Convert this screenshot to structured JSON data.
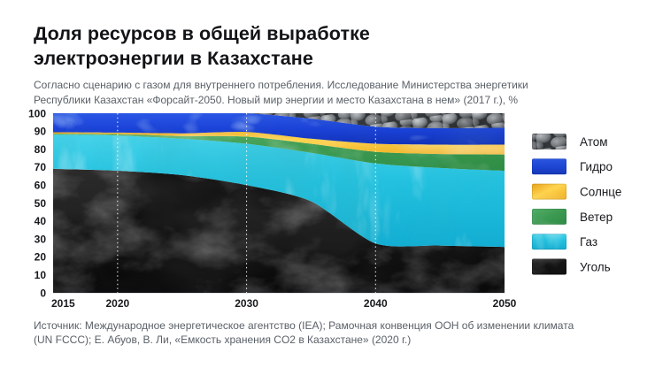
{
  "header": {
    "title_line1": "Доля ресурсов в общей выработке",
    "title_line2": "электроэнергии в Казахстане",
    "subtitle_line1": "Согласно сценарию с газом для внутреннего потребления. Исследование Министерства энергетики",
    "subtitle_line2": "Республики Казахстан «Форсайт-2050. Новый мир энергии и место Казахстана в нем» (2017 г.), %"
  },
  "footer": {
    "source_line1": "Источник: Международное энергетическое агентство (IEA); Рамочная конвенция ООН об изменении климата",
    "source_line2": "(UN FCCC); Е. Абуов, В. Ли, «Емкость хранения CO2 в Казахстане» (2020 г.)"
  },
  "chart_data": {
    "type": "area",
    "stacked": true,
    "title": "Доля ресурсов в общей выработке электроэнергии в Казахстане",
    "units": "%",
    "x": [
      2015,
      2020,
      2025,
      2030,
      2035,
      2040,
      2045,
      2050
    ],
    "xlim": [
      2015,
      2050
    ],
    "ylim": [
      0,
      100
    ],
    "x_ticks": [
      2015,
      2020,
      2030,
      2040,
      2050
    ],
    "grid_x": [
      2020,
      2030,
      2040
    ],
    "y_ticks": [
      0,
      10,
      20,
      30,
      40,
      50,
      60,
      70,
      80,
      90,
      100
    ],
    "grid_style": "white-dotted-vertical",
    "legend_position": "right",
    "series": [
      {
        "key": "coal",
        "name": "Уголь",
        "color": "#1c1e1f",
        "texture": "coal-photo",
        "values": [
          69,
          68,
          65.5,
          60,
          51,
          27.5,
          26.3,
          25.5
        ]
      },
      {
        "key": "gas",
        "name": "Газ",
        "color": "#23c2e1",
        "texture": "cyan-flame-photo",
        "values": [
          19,
          19.6,
          20.3,
          23,
          27,
          44.5,
          43.2,
          42.5
        ]
      },
      {
        "key": "wind",
        "name": "Ветер",
        "color": "#3f9d52",
        "texture": "green-photo",
        "values": [
          0.6,
          0.8,
          1.5,
          4,
          5,
          6.5,
          7.8,
          9
        ]
      },
      {
        "key": "sun",
        "name": "Солнце",
        "color": "#f2bc2e",
        "texture": "gold-photo",
        "values": [
          0.8,
          0.8,
          1.5,
          2.6,
          2.8,
          4.5,
          5.2,
          5.5
        ]
      },
      {
        "key": "hydro",
        "name": "Гидро",
        "color": "#1b43d8",
        "texture": "blue-water-photo",
        "values": [
          10.6,
          10.8,
          11.2,
          10.4,
          11.2,
          9.5,
          9.2,
          9.4
        ]
      },
      {
        "key": "atom",
        "name": "Атом",
        "color": "#85898d",
        "texture": "nuclear-pellets-photo",
        "values": [
          0,
          0,
          0,
          0,
          3,
          7.5,
          8.3,
          8.1
        ]
      }
    ]
  }
}
